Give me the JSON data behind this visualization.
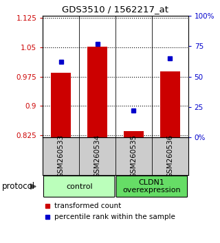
{
  "title": "GDS3510 / 1562217_at",
  "samples": [
    "GSM260533",
    "GSM260534",
    "GSM260535",
    "GSM260536"
  ],
  "bar_values": [
    0.985,
    1.052,
    0.836,
    0.988
  ],
  "percentile_values": [
    62,
    77,
    22,
    65
  ],
  "ylim_left": [
    0.82,
    1.13
  ],
  "ylim_right": [
    0,
    100
  ],
  "yticks_left": [
    0.825,
    0.9,
    0.975,
    1.05,
    1.125
  ],
  "yticks_right": [
    0,
    25,
    50,
    75,
    100
  ],
  "ytick_labels_right": [
    "0%",
    "25",
    "50",
    "75",
    "100%"
  ],
  "bar_color": "#cc0000",
  "dot_color": "#0000cc",
  "bar_width": 0.55,
  "groups": [
    {
      "label": "control",
      "color": "#bbffbb"
    },
    {
      "label": "CLDN1\noverexpression",
      "color": "#66dd66"
    }
  ],
  "sample_box_color": "#cccccc",
  "background_color": "#ffffff",
  "protocol_label": "protocol",
  "legend_items": [
    {
      "color": "#cc0000",
      "label": "transformed count"
    },
    {
      "color": "#0000cc",
      "label": "percentile rank within the sample"
    }
  ]
}
